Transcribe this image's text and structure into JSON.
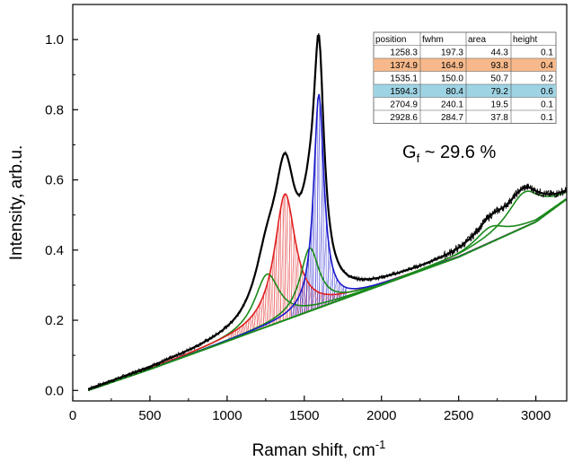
{
  "chart_data": {
    "type": "line",
    "xlabel": "Raman shift, cm",
    "xlabel_superscript": "-1",
    "ylabel": "Intensity, arb.u.",
    "xlim": [
      0,
      3200
    ],
    "ylim": [
      -0.03,
      1.1
    ],
    "xticks": [
      0,
      500,
      1000,
      1500,
      2000,
      2500,
      3000
    ],
    "yticks": [
      0.0,
      0.2,
      0.4,
      0.6,
      0.8,
      1.0
    ],
    "xtick_labels": [
      "0",
      "500",
      "1000",
      "1500",
      "2000",
      "2500",
      "3000"
    ],
    "ytick_labels": [
      "0.0",
      "0.2",
      "0.4",
      "0.6",
      "0.8",
      "1.0"
    ],
    "grid": false,
    "legend": "none",
    "baseline": {
      "x": [
        100,
        500,
        1000,
        1500,
        2000,
        2500,
        3000,
        3200
      ],
      "y": [
        0.0,
        0.06,
        0.14,
        0.22,
        0.3,
        0.38,
        0.48,
        0.545
      ]
    },
    "peaks": [
      {
        "position": 1258.3,
        "fwhm": 197.3,
        "height": 0.1,
        "amp": 0.15,
        "color": "#1a8a1a",
        "hatched": false
      },
      {
        "position": 1374.9,
        "fwhm": 164.9,
        "height": 0.4,
        "amp": 0.36,
        "color": "#e02020",
        "hatched": true
      },
      {
        "position": 1535.1,
        "fwhm": 150.0,
        "height": 0.2,
        "amp": 0.18,
        "color": "#1a8a1a",
        "hatched": false
      },
      {
        "position": 1594.3,
        "fwhm": 80.4,
        "height": 0.6,
        "amp": 0.61,
        "color": "#1a1acc",
        "hatched": true
      },
      {
        "position": 2704.9,
        "fwhm": 240.1,
        "height": 0.1,
        "amp": 0.045,
        "color": "#1a8a1a",
        "hatched": false
      },
      {
        "position": 2928.6,
        "fwhm": 284.7,
        "height": 0.1,
        "amp": 0.1,
        "color": "#1a8a1a",
        "hatched": false
      }
    ],
    "table": {
      "headers": [
        "position",
        "fwhm",
        "area",
        "height"
      ],
      "rows": [
        [
          "1258.3",
          "197.3",
          "44.3",
          "0.1"
        ],
        [
          "1374.9",
          "164.9",
          "93.8",
          "0.4"
        ],
        [
          "1535.1",
          "150.0",
          "50.7",
          "0.2"
        ],
        [
          "1594.3",
          "80.4",
          "79.2",
          "0.6"
        ],
        [
          "2704.9",
          "240.1",
          "19.5",
          "0.1"
        ],
        [
          "2928.6",
          "284.7",
          "37.8",
          "0.1"
        ]
      ],
      "row_highlights": [
        "",
        "#f7b98b",
        "",
        "#9ed3e3",
        "",
        ""
      ]
    },
    "annotation_main": "G",
    "annotation_sub": "f",
    "annotation_rest": " ~ 29.6 %"
  }
}
